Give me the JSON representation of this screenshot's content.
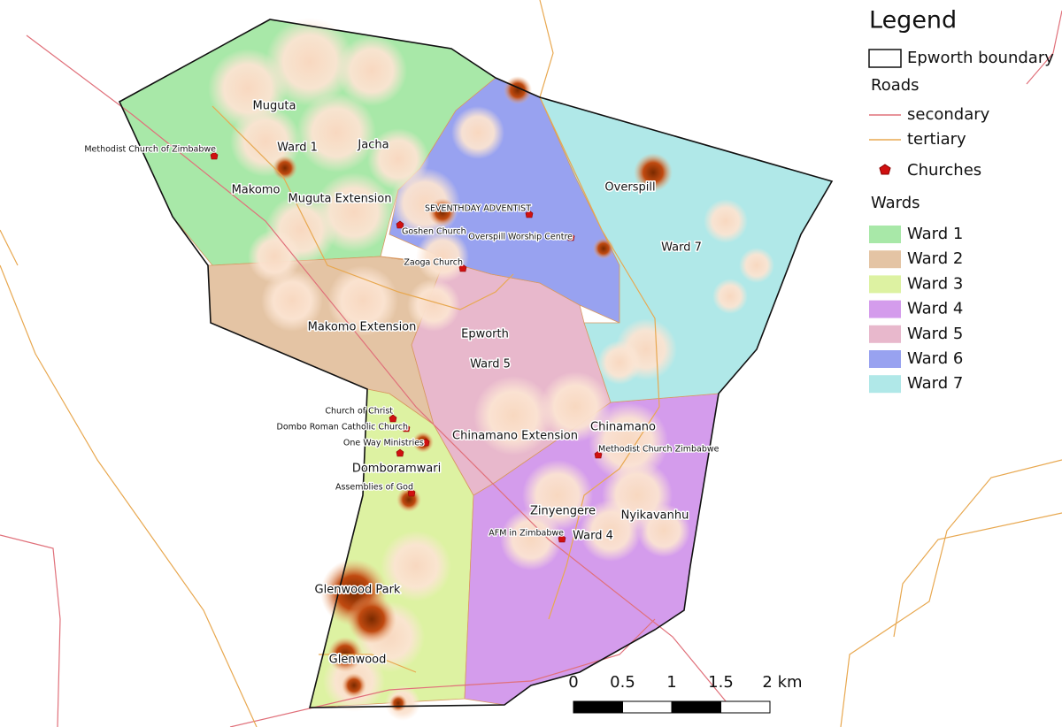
{
  "legend": {
    "title": "Legend",
    "boundary": "Epworth boundary",
    "roads_heading": "Roads",
    "roads": [
      {
        "name": "secondary",
        "color": "#e0707a"
      },
      {
        "name": "tertiary",
        "color": "#e8a850"
      }
    ],
    "churches": "Churches",
    "wards_heading": "Wards",
    "wards": [
      {
        "name": "Ward 1",
        "color": "#a8e8a8"
      },
      {
        "name": "Ward 2",
        "color": "#e4c4a4"
      },
      {
        "name": "Ward 3",
        "color": "#ddf2a2"
      },
      {
        "name": "Ward 4",
        "color": "#d49cec"
      },
      {
        "name": "Ward 5",
        "color": "#e8b8cc"
      },
      {
        "name": "Ward 6",
        "color": "#98a2f0"
      },
      {
        "name": "Ward 7",
        "color": "#b0e8e8"
      }
    ]
  },
  "places": [
    "Muguta",
    "Ward 1",
    "Jacha",
    "Makomo",
    "Muguta Extension",
    "Overspill",
    "Ward 7",
    "Makomo Extension",
    "Epworth",
    "Ward 5",
    "Chinamano Extension",
    "Chinamano",
    "Domboramwari",
    "Zinyengere",
    "Nyikavanhu",
    "Ward 4",
    "Glenwood Park",
    "Glenwood"
  ],
  "churches": [
    "Methodist Church of Zimbabwe",
    "SEVENTHDAY ADVENTIST",
    "Goshen Church",
    "Overspill Worship Centre",
    "Zaoga Church",
    "Church of Christ",
    "Dombo Roman Catholic Church",
    "One Way Ministries",
    "Assemblies of God",
    "Methodist Church Zimbabwe",
    "AFM in Zimbabwe"
  ],
  "scale_bar": {
    "labels": [
      "0",
      "0.5",
      "1",
      "1.5",
      "2 km"
    ]
  }
}
